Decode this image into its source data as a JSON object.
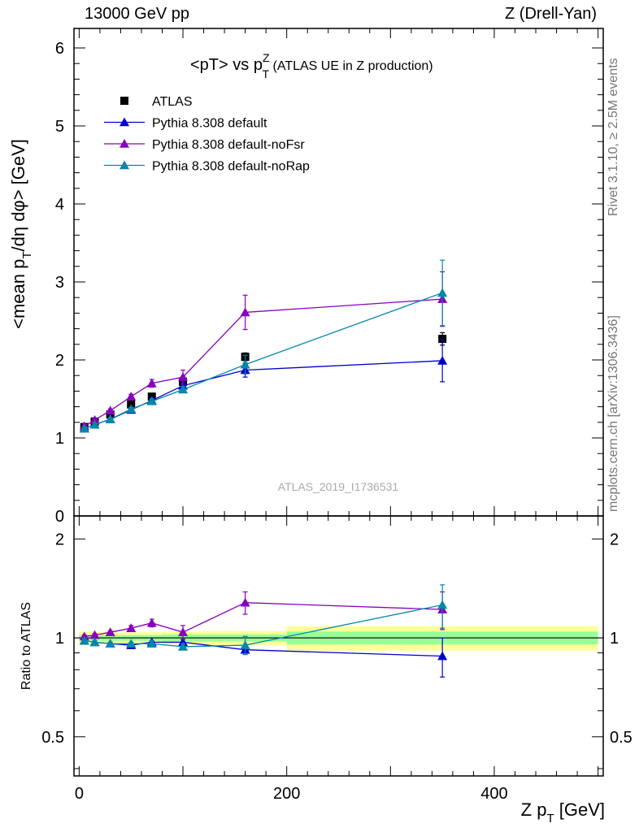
{
  "header": {
    "left": "13000 GeV pp",
    "right": "Z (Drell-Yan)"
  },
  "side_labels": {
    "rivet": "Rivet 3.1.10, ≥ 2.5M events",
    "mcplots": "mcplots.cern.ch [arXiv:1306.3436]"
  },
  "watermark": "ATLAS_2019_I1736531",
  "chart_data": [
    {
      "type": "scatter",
      "title": "<pT> vs p_T^Z (ATLAS UE in Z production)",
      "title_parts": {
        "pre": "<pT> vs p",
        "sub": "T",
        "sup": "Z",
        "post": " (ATLAS UE in Z production)"
      },
      "xlabel": "Z p_T [GeV]",
      "xlabel_parts": {
        "pre": "Z p",
        "sub": "T",
        "post": " [GeV]"
      },
      "ylabel": "<mean p_T/dη dφ> [GeV]",
      "ylabel_parts": {
        "pre": "<mean p",
        "sub": "T",
        "post": "/dη dφ> [GeV]"
      },
      "xlim": [
        -5,
        505
      ],
      "ylim": [
        0,
        6.25
      ],
      "yticks": [
        0,
        1,
        2,
        3,
        4,
        5,
        6
      ],
      "yticklabels": [
        "0",
        "1",
        "2",
        "3",
        "4",
        "5",
        "6"
      ],
      "legend_position": "top-left",
      "series": [
        {
          "name": "ATLAS",
          "marker": "square",
          "color": "#000000",
          "x": [
            5,
            15,
            30,
            50,
            70,
            100,
            160,
            350
          ],
          "y": [
            1.14,
            1.21,
            1.3,
            1.43,
            1.53,
            1.72,
            2.04,
            2.27
          ],
          "yerr": [
            0.02,
            0.02,
            0.02,
            0.02,
            0.03,
            0.04,
            0.05,
            0.08
          ]
        },
        {
          "name": "Pythia 8.308 default",
          "marker": "triangle",
          "color": "#0000cc",
          "x": [
            5,
            15,
            30,
            50,
            70,
            100,
            160,
            350
          ],
          "y": [
            1.12,
            1.17,
            1.24,
            1.36,
            1.48,
            1.67,
            1.87,
            1.99
          ],
          "yerr": [
            0.01,
            0.01,
            0.02,
            0.02,
            0.03,
            0.05,
            0.09,
            0.27
          ]
        },
        {
          "name": "Pythia 8.308 default-noFsr",
          "marker": "triangle",
          "color": "#8800bb",
          "x": [
            5,
            15,
            30,
            50,
            70,
            100,
            160,
            350
          ],
          "y": [
            1.15,
            1.23,
            1.35,
            1.53,
            1.7,
            1.78,
            2.61,
            2.78
          ],
          "yerr": [
            0.01,
            0.01,
            0.02,
            0.03,
            0.05,
            0.09,
            0.22,
            0.35
          ]
        },
        {
          "name": "Pythia 8.308 default-noRap",
          "marker": "triangle",
          "color": "#0088aa",
          "x": [
            5,
            15,
            30,
            50,
            70,
            100,
            160,
            350
          ],
          "y": [
            1.12,
            1.17,
            1.24,
            1.37,
            1.47,
            1.62,
            1.94,
            2.86
          ],
          "yerr": [
            0.01,
            0.01,
            0.02,
            0.02,
            0.03,
            0.04,
            0.12,
            0.42
          ]
        }
      ]
    },
    {
      "type": "scatter",
      "ylabel": "Ratio to ATLAS",
      "xlim": [
        -5,
        505
      ],
      "xticks": [
        0,
        200,
        400
      ],
      "xticklabels": [
        "0",
        "200",
        "400"
      ],
      "ylim": [
        0.38,
        2.35
      ],
      "yticks": [
        0.5,
        1,
        2
      ],
      "yticklabels": [
        "0.5",
        "1",
        "2"
      ],
      "reference_line": 1,
      "bands": [
        {
          "x0": 0,
          "x1": 20,
          "inner": [
            0.98,
            1.02
          ],
          "outer": [
            0.955,
            1.045
          ]
        },
        {
          "x0": 20,
          "x1": 40,
          "inner": [
            0.98,
            1.02
          ],
          "outer": [
            0.96,
            1.04
          ]
        },
        {
          "x0": 40,
          "x1": 60,
          "inner": [
            0.98,
            1.02
          ],
          "outer": [
            0.96,
            1.04
          ]
        },
        {
          "x0": 60,
          "x1": 80,
          "inner": [
            0.98,
            1.02
          ],
          "outer": [
            0.96,
            1.04
          ]
        },
        {
          "x0": 80,
          "x1": 120,
          "inner": [
            0.975,
            1.025
          ],
          "outer": [
            0.955,
            1.045
          ]
        },
        {
          "x0": 120,
          "x1": 200,
          "inner": [
            0.975,
            1.025
          ],
          "outer": [
            0.95,
            1.05
          ]
        },
        {
          "x0": 200,
          "x1": 500,
          "inner": [
            0.955,
            1.045
          ],
          "outer": [
            0.915,
            1.085
          ]
        }
      ],
      "series": [
        {
          "name": "Pythia 8.308 default",
          "color": "#0000cc",
          "x": [
            5,
            15,
            30,
            50,
            70,
            100,
            160,
            350
          ],
          "y": [
            0.98,
            0.97,
            0.96,
            0.95,
            0.97,
            0.97,
            0.92,
            0.88
          ],
          "yerr": [
            0.01,
            0.01,
            0.01,
            0.01,
            0.01,
            0.02,
            0.03,
            0.12
          ]
        },
        {
          "name": "Pythia 8.308 default-noFsr",
          "color": "#8800bb",
          "x": [
            5,
            15,
            30,
            50,
            70,
            100,
            160,
            350
          ],
          "y": [
            1.01,
            1.02,
            1.04,
            1.07,
            1.11,
            1.04,
            1.28,
            1.22
          ],
          "yerr": [
            0.01,
            0.01,
            0.01,
            0.02,
            0.03,
            0.05,
            0.1,
            0.16
          ]
        },
        {
          "name": "Pythia 8.308 default-noRap",
          "color": "#0088aa",
          "x": [
            5,
            15,
            30,
            50,
            70,
            100,
            160,
            350
          ],
          "y": [
            0.98,
            0.97,
            0.96,
            0.96,
            0.96,
            0.94,
            0.95,
            1.26
          ],
          "yerr": [
            0.01,
            0.01,
            0.01,
            0.01,
            0.02,
            0.02,
            0.06,
            0.19
          ]
        }
      ]
    }
  ],
  "colors": {
    "band_inner": "#99ff99",
    "band_outer": "#ffff99"
  }
}
